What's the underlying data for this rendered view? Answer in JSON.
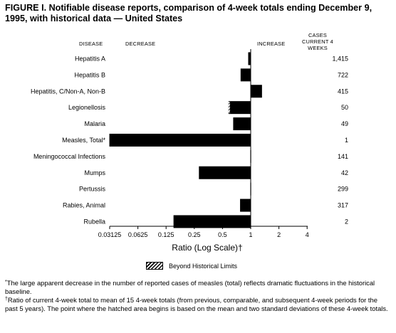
{
  "title": "FIGURE I. Notifiable disease reports, comparison of 4-week totals ending December 9, 1995, with historical data — United States",
  "headers": {
    "disease": "DISEASE",
    "decrease": "DECREASE",
    "increase": "INCREASE",
    "cases": "CASES CURRENT 4 WEEKS"
  },
  "legend": {
    "label": "Beyond Historical Limits"
  },
  "footnotes": {
    "star_mark": "*",
    "star": "The large apparent decrease in the number of reported cases of measles (total) reflects dramatic fluctuations in the historical baseline.",
    "dagger_mark": "†",
    "dagger": "Ratio of current 4-week total to mean of 15 4-week totals (from previous, comparable, and subsequent 4-week periods for the past 5 years). The point where the hatched area begins is based on the mean and two standard deviations of these 4-week totals."
  },
  "chart_data": {
    "type": "bar",
    "orientation": "horizontal",
    "xlabel": "Ratio (Log Scale)†",
    "xscale": "log2",
    "xlim": [
      0.03125,
      4
    ],
    "xticks": [
      "0.03125",
      "0.0625",
      "0.125",
      "0.25",
      "0.5",
      "1",
      "2",
      "4"
    ],
    "reference_line": 1,
    "categories": [
      "Hepatitis A",
      "Hepatitis B",
      "Hepatitis, C/Non-A, Non-B",
      "Legionellosis",
      "Malaria",
      "Measles, Total*",
      "Meningococcal Infections",
      "Mumps",
      "Pertussis",
      "Rabies, Animal",
      "Rubella"
    ],
    "values": [
      0.94,
      0.78,
      1.32,
      0.58,
      0.65,
      0.031,
      0.99,
      0.28,
      0.99,
      0.77,
      0.15
    ],
    "beyond_historical_limits_start": [
      null,
      null,
      null,
      0.6,
      null,
      null,
      null,
      null,
      null,
      null,
      null
    ],
    "cases_current_4_weeks": [
      "1,415",
      "722",
      "415",
      "50",
      "49",
      "1",
      "141",
      "42",
      "299",
      "317",
      "2"
    ],
    "colors": {
      "bar": "#000000",
      "hatch": "#000000"
    }
  }
}
